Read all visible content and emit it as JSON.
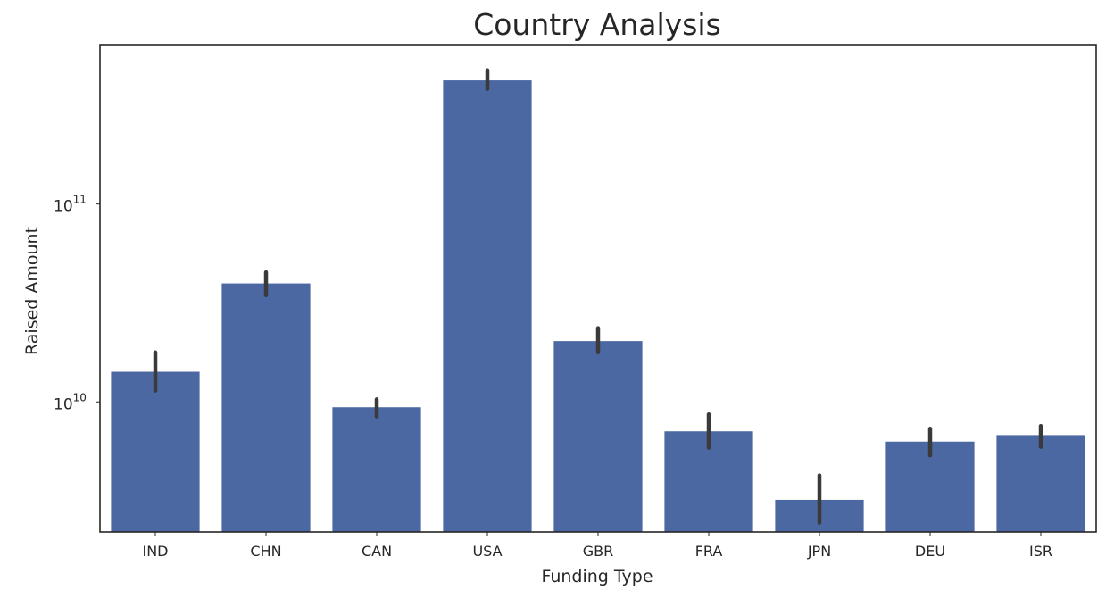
{
  "chart_data": {
    "type": "bar",
    "title": "Country Analysis",
    "xlabel": "Funding Type",
    "ylabel": "Raised Amount",
    "y_scale": "log",
    "ylim": [
      2200000000,
      640000000000
    ],
    "y_ticks": [
      {
        "value": 10000000000,
        "base": "10",
        "exp": "10"
      },
      {
        "value": 100000000000,
        "base": "10",
        "exp": "11"
      }
    ],
    "categories": [
      "IND",
      "CHN",
      "CAN",
      "USA",
      "GBR",
      "FRA",
      "JPN",
      "DEU",
      "ISR"
    ],
    "values": [
      14200000000,
      39700000000,
      9400000000,
      422000000000,
      20300000000,
      7100000000,
      3200000000,
      6300000000,
      6800000000
    ],
    "error_low": [
      11400000000,
      34600000000,
      8450000000,
      382000000000,
      17800000000,
      5870000000,
      2450000000,
      5370000000,
      5930000000
    ],
    "error_high": [
      17800000000,
      45200000000,
      10300000000,
      475000000000,
      23600000000,
      8650000000,
      4250000000,
      7320000000,
      7560000000
    ],
    "grid": false,
    "colors": {
      "bar": "#4c68a2",
      "error_bar": "#3a3a3a",
      "frame": "#262626",
      "text": "#262626"
    }
  }
}
